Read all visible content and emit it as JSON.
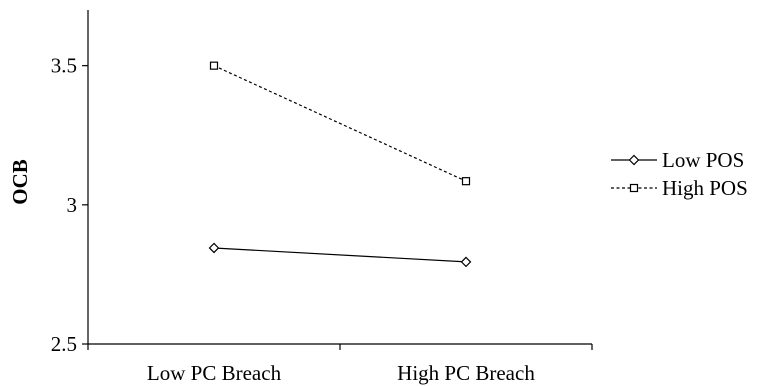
{
  "chart_data": {
    "type": "line",
    "categories": [
      "Low PC Breach",
      "High PC Breach"
    ],
    "series": [
      {
        "name": "Low POS",
        "values": [
          2.845,
          2.795
        ],
        "line_style": "solid",
        "marker": "diamond"
      },
      {
        "name": "High POS",
        "values": [
          3.5,
          3.085
        ],
        "line_style": "dashed",
        "marker": "square"
      }
    ],
    "title": "",
    "xlabel": "",
    "ylabel": "OCB",
    "ylim": [
      2.5,
      3.7
    ],
    "yticks": [
      "2.5",
      "3",
      "3.5"
    ],
    "grid": false,
    "legend_position": "right",
    "colors": {
      "line": "#000000",
      "background": "#ffffff"
    }
  }
}
